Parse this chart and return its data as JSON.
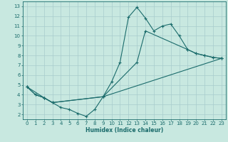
{
  "bg_color": "#c8e8e0",
  "grid_color": "#a8cccc",
  "line_color": "#1a6b6b",
  "xlabel": "Humidex (Indice chaleur)",
  "xlim": [
    -0.5,
    23.5
  ],
  "ylim": [
    1.5,
    13.5
  ],
  "xticks": [
    0,
    1,
    2,
    3,
    4,
    5,
    6,
    7,
    8,
    9,
    10,
    11,
    12,
    13,
    14,
    15,
    16,
    17,
    18,
    19,
    20,
    21,
    22,
    23
  ],
  "yticks": [
    2,
    3,
    4,
    5,
    6,
    7,
    8,
    9,
    10,
    11,
    12,
    13
  ],
  "line1_x": [
    0,
    1,
    2,
    3,
    4,
    5,
    6,
    7,
    8,
    9,
    10,
    11,
    12,
    13,
    14,
    15,
    16,
    17,
    18,
    19,
    20,
    21,
    22,
    23
  ],
  "line1_y": [
    4.8,
    4.0,
    3.7,
    3.2,
    2.7,
    2.5,
    2.1,
    1.8,
    2.5,
    3.8,
    5.3,
    7.3,
    11.9,
    12.9,
    11.8,
    10.5,
    11.0,
    11.2,
    10.0,
    8.6,
    8.2,
    8.0,
    7.8,
    7.7
  ],
  "line2_x": [
    0,
    1,
    2,
    3,
    9,
    13,
    14,
    19,
    20,
    21,
    22,
    23
  ],
  "line2_y": [
    4.8,
    4.0,
    3.7,
    3.2,
    3.8,
    7.3,
    10.5,
    8.6,
    8.2,
    8.0,
    7.8,
    7.7
  ],
  "line3_x": [
    0,
    2,
    3,
    9,
    23
  ],
  "line3_y": [
    4.8,
    3.7,
    3.2,
    3.8,
    7.7
  ]
}
